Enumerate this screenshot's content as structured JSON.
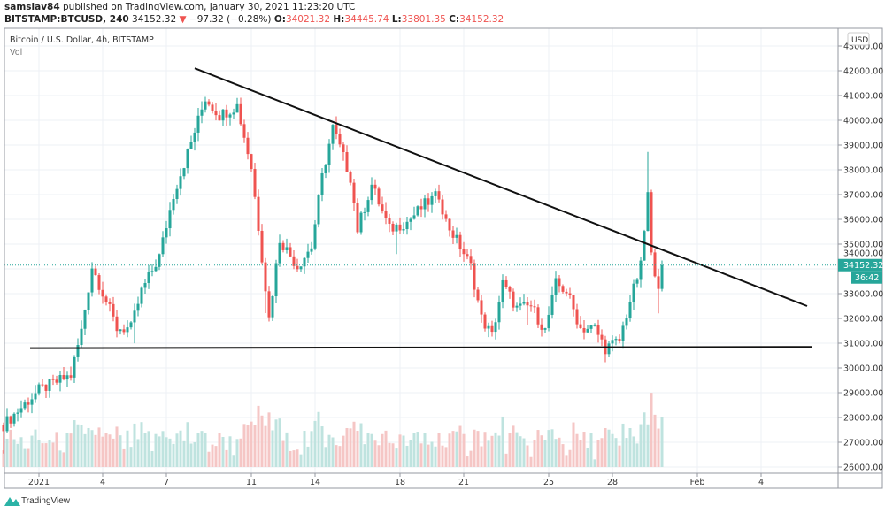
{
  "header": {
    "author": "samslav84",
    "published": "published on TradingView.com, January 30, 2021 11:23:20 UTC",
    "symbol": "BITSTAMP:BTCUSD, 240",
    "last": "34152.32",
    "change_icon": "triangle-down-icon",
    "change": "−97.32 (−0.28%)",
    "o_label": "O:",
    "o": "34021.32",
    "h_label": "H:",
    "h": "34445.74",
    "l_label": "L:",
    "l": "33801.35",
    "c_label": "C:",
    "c": "34152.32"
  },
  "legend": {
    "title": "Bitcoin / U.S. Dollar, 4h, BITSTAMP",
    "vol": "Vol"
  },
  "price_axis": {
    "currency": "USD",
    "ticks": [
      "43000.00",
      "42000.00",
      "41000.00",
      "40000.00",
      "39000.00",
      "38000.00",
      "37000.00",
      "36000.00",
      "35000.00",
      "34000.00",
      "33000.00",
      "32000.00",
      "31000.00",
      "30000.00",
      "29000.00",
      "28000.00",
      "27000.00",
      "26000.00"
    ],
    "last_price": "34152.32",
    "countdown": "36:42"
  },
  "time_axis": {
    "ticks": [
      {
        "label": "2021",
        "date": "2021-01-01T00:00"
      },
      {
        "label": "4",
        "date": "2021-01-04T00:00"
      },
      {
        "label": "7",
        "date": "2021-01-07T00:00"
      },
      {
        "label": "11",
        "date": "2021-01-11T00:00"
      },
      {
        "label": "14",
        "date": "2021-01-14T00:00"
      },
      {
        "label": "18",
        "date": "2021-01-18T00:00"
      },
      {
        "label": "21",
        "date": "2021-01-21T00:00"
      },
      {
        "label": "25",
        "date": "2021-01-25T00:00"
      },
      {
        "label": "28",
        "date": "2021-01-28T00:00"
      },
      {
        "label": "Feb",
        "date": "2021-02-01T00:00"
      },
      {
        "label": "4",
        "date": "2021-02-04T00:00"
      }
    ]
  },
  "chart_data": {
    "type": "candlestick",
    "interval": "4h",
    "ylim": [
      26000,
      43000
    ],
    "up_color": "#26a69a",
    "down_color": "#ef5350",
    "price_path": [
      [
        "2020-12-30T08:00",
        27700
      ],
      [
        "2021-01-01T00:00",
        29100
      ],
      [
        "2021-01-02T12:00",
        29700
      ],
      [
        "2021-01-03T00:00",
        31500
      ],
      [
        "2021-01-03T12:00",
        34100
      ],
      [
        "2021-01-04T04:00",
        32700
      ],
      [
        "2021-01-04T16:00",
        31600
      ],
      [
        "2021-01-05T08:00",
        31600
      ],
      [
        "2021-01-05T20:00",
        33100
      ],
      [
        "2021-01-06T16:00",
        34500
      ],
      [
        "2021-01-07T08:00",
        37000
      ],
      [
        "2021-01-08T04:00",
        39100
      ],
      [
        "2021-01-08T20:00",
        40900
      ],
      [
        "2021-01-09T12:00",
        40200
      ],
      [
        "2021-01-10T08:00",
        40600
      ],
      [
        "2021-01-11T00:00",
        38100
      ],
      [
        "2021-01-11T12:00",
        34500
      ],
      [
        "2021-01-11T20:00",
        32000
      ],
      [
        "2021-01-12T08:00",
        35200
      ],
      [
        "2021-01-13T04:00",
        34100
      ],
      [
        "2021-01-13T20:00",
        34900
      ],
      [
        "2021-01-14T08:00",
        37700
      ],
      [
        "2021-01-14T20:00",
        39700
      ],
      [
        "2021-01-15T16:00",
        37700
      ],
      [
        "2021-01-16T00:00",
        35600
      ],
      [
        "2021-01-16T16:00",
        37400
      ],
      [
        "2021-01-17T12:00",
        35600
      ],
      [
        "2021-01-18T08:00",
        35900
      ],
      [
        "2021-01-19T04:00",
        36600
      ],
      [
        "2021-01-19T20:00",
        37000
      ],
      [
        "2021-01-20T04:00",
        35900
      ],
      [
        "2021-01-20T20:00",
        34900
      ],
      [
        "2021-01-21T08:00",
        34100
      ],
      [
        "2021-01-21T20:00",
        32000
      ],
      [
        "2021-01-22T08:00",
        31300
      ],
      [
        "2021-01-22T20:00",
        33400
      ],
      [
        "2021-01-23T12:00",
        32400
      ],
      [
        "2021-01-24T04:00",
        32500
      ],
      [
        "2021-01-24T20:00",
        31500
      ],
      [
        "2021-01-25T08:00",
        33400
      ],
      [
        "2021-01-25T20:00",
        33100
      ],
      [
        "2021-01-26T12:00",
        31600
      ],
      [
        "2021-01-27T04:00",
        31600
      ],
      [
        "2021-01-27T16:00",
        30800
      ],
      [
        "2021-01-28T08:00",
        31100
      ],
      [
        "2021-01-28T20:00",
        32700
      ],
      [
        "2021-01-29T08:00",
        34100
      ],
      [
        "2021-01-29T16:00",
        37000
      ],
      [
        "2021-01-29T20:00",
        34500
      ],
      [
        "2021-01-30T04:00",
        33400
      ],
      [
        "2021-01-30T08:00",
        34152.32
      ]
    ],
    "trendlines": [
      {
        "kind": "descending-resistance",
        "from": [
          "2021-01-08T08:00",
          42100
        ],
        "to": [
          "2021-02-06T04:00",
          32500
        ]
      },
      {
        "kind": "horizontal-support",
        "from": [
          "2020-12-31T14:00",
          30800
        ],
        "to": [
          "2021-02-06T10:00",
          30850
        ]
      }
    ]
  },
  "footer": {
    "brand": "TradingView"
  }
}
